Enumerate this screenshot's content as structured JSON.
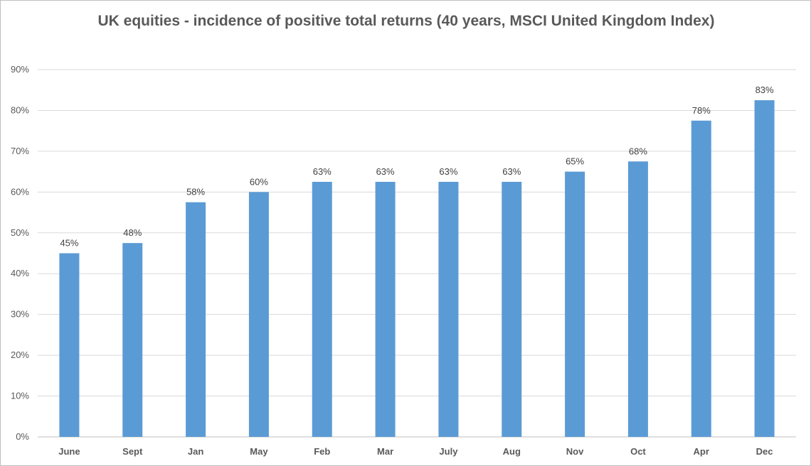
{
  "chart_data": {
    "type": "bar",
    "title": "UK equities - incidence of positive total returns (40 years, MSCI United Kingdom Index)",
    "xlabel": "",
    "ylabel": "",
    "categories": [
      "June",
      "Sept",
      "Jan",
      "May",
      "Feb",
      "Mar",
      "July",
      "Aug",
      "Nov",
      "Oct",
      "Apr",
      "Dec"
    ],
    "values": [
      45,
      47.5,
      57.5,
      60,
      62.5,
      62.5,
      62.5,
      62.5,
      65,
      67.5,
      77.5,
      82.5
    ],
    "data_labels": [
      "45%",
      "48%",
      "58%",
      "60%",
      "63%",
      "63%",
      "63%",
      "63%",
      "65%",
      "68%",
      "78%",
      "83%"
    ],
    "ylim": [
      0,
      90
    ],
    "yticks": [
      0,
      10,
      20,
      30,
      40,
      50,
      60,
      70,
      80,
      90
    ],
    "ytick_labels": [
      "0%",
      "10%",
      "20%",
      "30%",
      "40%",
      "50%",
      "60%",
      "70%",
      "80%",
      "90%"
    ],
    "grid": true,
    "legend": "none",
    "colors": {
      "bar": "#5b9bd5",
      "grid": "#d9d9d9",
      "text": "#595959"
    }
  }
}
